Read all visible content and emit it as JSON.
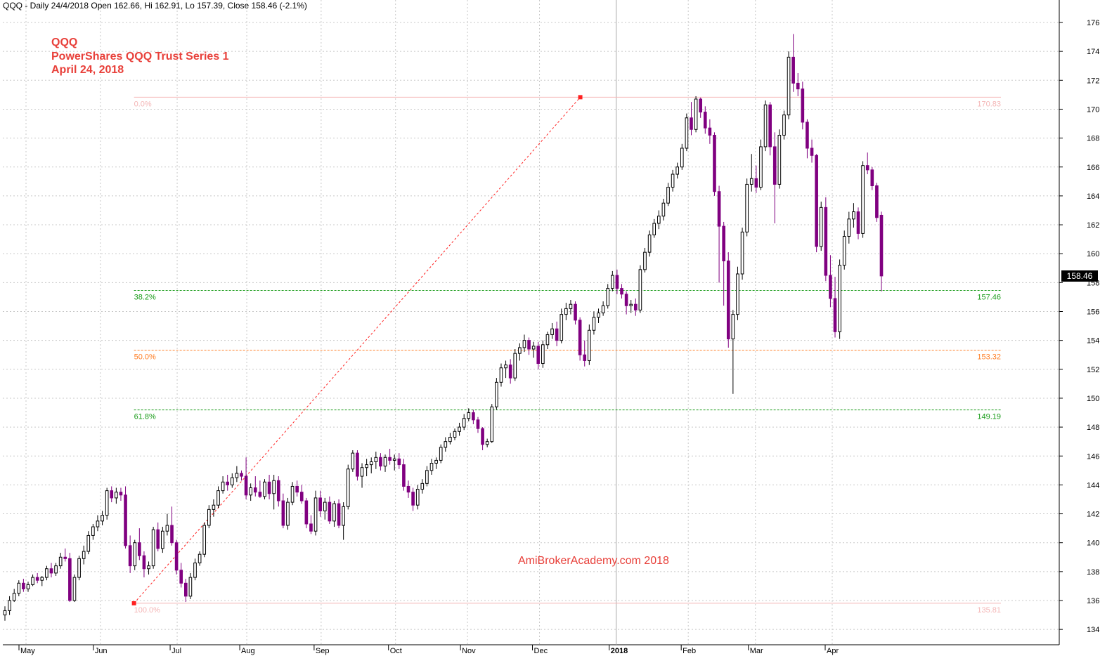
{
  "header": {
    "text": "QQQ - Daily 24/4/2018 Open 162.66, Hi 162.91, Lo 157.39, Close 158.46 (-2.1%)"
  },
  "annotations": {
    "ticker": "QQQ",
    "name": "PowerShares QQQ Trust Series 1",
    "date": "April 24, 2018",
    "watermark": "AmiBrokerAcademy.com  2018"
  },
  "last_price_label": "158.46",
  "colors": {
    "up": "#000000",
    "down": "#800080",
    "fib_0": "#f4b6b6",
    "fib_382": "#1a9c1a",
    "fib_50": "#ff7f27",
    "fib_618": "#1a9c1a",
    "fib_100": "#f4b6b6",
    "trend": "#ff2020",
    "grid": "#c8c8c8",
    "annotation": "#e8403a"
  },
  "chart_data": {
    "type": "candlestick",
    "title": "QQQ - Daily 24/4/2018",
    "x_axis": {
      "tick_labels": [
        "May",
        "Jun",
        "Jul",
        "Aug",
        "Sep",
        "Oct",
        "Nov",
        "Dec",
        "2018",
        "Feb",
        "Mar",
        "Apr"
      ],
      "tick_dates": [
        "2017-05-01",
        "2017-06-01",
        "2017-07-03",
        "2017-08-01",
        "2017-09-01",
        "2017-10-02",
        "2017-11-01",
        "2017-12-01",
        "2018-01-02",
        "2018-02-01",
        "2018-03-01",
        "2018-04-02"
      ]
    },
    "y_axis": {
      "ylim": [
        133,
        177
      ],
      "ticks": [
        134,
        136,
        138,
        140,
        142,
        144,
        146,
        148,
        150,
        152,
        154,
        156,
        158,
        160,
        162,
        164,
        166,
        168,
        170,
        172,
        174,
        176
      ],
      "position": "right"
    },
    "grid": true,
    "last_candle": {
      "date": "2018-04-24",
      "open": 162.66,
      "high": 162.91,
      "low": 157.39,
      "close": 158.46
    },
    "fibonacci": {
      "anchor_low": {
        "date": "2017-06-15",
        "value": 135.81
      },
      "anchor_high": {
        "date": "2017-12-18",
        "value": 170.83
      },
      "levels": [
        {
          "pct": "0.0%",
          "value": 170.83,
          "label": "170.83"
        },
        {
          "pct": "38.2%",
          "value": 157.46,
          "label": "157.46"
        },
        {
          "pct": "50.0%",
          "value": 153.32,
          "label": "153.32"
        },
        {
          "pct": "61.8%",
          "value": 149.19,
          "label": "149.19"
        },
        {
          "pct": "100.0%",
          "value": 135.81,
          "label": "135.81"
        }
      ]
    },
    "ohlc_approx": [
      [
        135.0,
        135.6,
        134.6,
        135.3
      ],
      [
        135.3,
        136.3,
        135.0,
        136.0
      ],
      [
        136.0,
        136.8,
        135.9,
        136.5
      ],
      [
        136.5,
        137.4,
        136.3,
        137.2
      ],
      [
        137.2,
        137.5,
        136.6,
        136.8
      ],
      [
        136.8,
        137.3,
        136.6,
        137.1
      ],
      [
        137.1,
        137.8,
        137.0,
        137.6
      ],
      [
        137.6,
        137.9,
        137.2,
        137.4
      ],
      [
        137.4,
        137.7,
        137.0,
        137.6
      ],
      [
        137.6,
        138.4,
        137.4,
        138.2
      ],
      [
        138.2,
        138.6,
        137.6,
        137.9
      ],
      [
        137.9,
        138.6,
        137.7,
        138.4
      ],
      [
        138.4,
        139.3,
        138.2,
        139.0
      ],
      [
        139.0,
        139.6,
        138.7,
        138.9
      ],
      [
        138.9,
        139.3,
        135.9,
        136.0
      ],
      [
        136.0,
        137.8,
        135.9,
        137.6
      ],
      [
        137.6,
        139.1,
        137.4,
        138.9
      ],
      [
        138.9,
        139.8,
        138.5,
        139.4
      ],
      [
        139.4,
        140.8,
        139.2,
        140.5
      ],
      [
        140.5,
        141.3,
        140.2,
        141.1
      ],
      [
        141.1,
        141.9,
        140.8,
        141.5
      ],
      [
        141.5,
        142.2,
        141.2,
        141.9
      ],
      [
        141.9,
        143.8,
        141.6,
        143.6
      ],
      [
        143.6,
        143.9,
        142.8,
        143.1
      ],
      [
        143.1,
        143.8,
        142.7,
        143.5
      ],
      [
        143.5,
        143.8,
        142.9,
        143.3
      ],
      [
        143.3,
        143.9,
        139.6,
        139.8
      ],
      [
        139.8,
        140.5,
        137.9,
        138.4
      ],
      [
        138.4,
        140.2,
        138.1,
        140.0
      ],
      [
        140.0,
        141.0,
        138.8,
        139.1
      ],
      [
        139.1,
        139.4,
        137.6,
        138.2
      ],
      [
        138.2,
        138.7,
        137.8,
        138.4
      ],
      [
        138.4,
        141.1,
        138.2,
        140.9
      ],
      [
        140.9,
        141.4,
        139.4,
        139.6
      ],
      [
        139.6,
        141.1,
        139.3,
        140.8
      ],
      [
        140.8,
        142.0,
        140.5,
        141.2
      ],
      [
        141.2,
        142.5,
        139.8,
        140.0
      ],
      [
        140.0,
        140.2,
        137.8,
        138.1
      ],
      [
        138.1,
        138.6,
        136.9,
        137.2
      ],
      [
        137.2,
        137.5,
        135.9,
        136.3
      ],
      [
        136.3,
        137.9,
        136.1,
        137.6
      ],
      [
        137.6,
        138.9,
        137.4,
        138.6
      ],
      [
        138.6,
        139.4,
        138.4,
        139.2
      ],
      [
        139.2,
        141.4,
        139.0,
        141.2
      ],
      [
        141.2,
        142.6,
        141.0,
        142.3
      ],
      [
        142.3,
        143.0,
        141.8,
        142.6
      ],
      [
        142.6,
        143.9,
        142.4,
        143.6
      ],
      [
        143.6,
        144.6,
        143.4,
        144.2
      ],
      [
        144.2,
        144.7,
        143.6,
        144.0
      ],
      [
        144.0,
        144.8,
        143.8,
        144.5
      ],
      [
        144.5,
        145.3,
        144.2,
        144.8
      ],
      [
        144.8,
        145.0,
        144.3,
        144.6
      ],
      [
        144.6,
        145.9,
        143.0,
        143.3
      ],
      [
        143.3,
        144.1,
        142.9,
        143.8
      ],
      [
        143.8,
        144.6,
        143.2,
        143.5
      ],
      [
        143.5,
        144.3,
        143.1,
        143.2
      ],
      [
        143.2,
        144.4,
        143.0,
        144.2
      ],
      [
        144.2,
        144.7,
        143.0,
        143.4
      ],
      [
        143.4,
        144.7,
        142.3,
        144.3
      ],
      [
        144.3,
        144.6,
        142.5,
        142.9
      ],
      [
        142.9,
        143.4,
        141.0,
        141.2
      ],
      [
        141.2,
        143.1,
        140.9,
        142.8
      ],
      [
        142.8,
        144.2,
        142.6,
        143.9
      ],
      [
        143.9,
        144.3,
        143.2,
        143.5
      ],
      [
        143.5,
        144.0,
        142.7,
        142.9
      ],
      [
        142.9,
        143.1,
        141.0,
        141.3
      ],
      [
        141.3,
        141.9,
        140.6,
        140.8
      ],
      [
        140.8,
        143.6,
        140.5,
        143.1
      ],
      [
        143.1,
        143.6,
        141.8,
        142.2
      ],
      [
        142.2,
        143.1,
        141.6,
        142.8
      ],
      [
        142.8,
        143.2,
        141.3,
        141.5
      ],
      [
        141.5,
        142.9,
        141.1,
        142.7
      ],
      [
        142.7,
        143.0,
        141.0,
        141.2
      ],
      [
        141.2,
        142.8,
        140.2,
        142.5
      ],
      [
        142.5,
        145.4,
        142.3,
        145.1
      ],
      [
        145.1,
        146.4,
        144.9,
        146.2
      ],
      [
        146.2,
        146.4,
        144.3,
        144.6
      ],
      [
        144.6,
        145.5,
        143.8,
        145.2
      ],
      [
        145.2,
        145.8,
        144.6,
        145.4
      ],
      [
        145.4,
        145.9,
        144.8,
        145.6
      ],
      [
        145.6,
        146.3,
        145.1,
        145.9
      ],
      [
        145.9,
        146.2,
        145.0,
        145.3
      ],
      [
        145.3,
        146.1,
        144.9,
        145.9
      ],
      [
        145.9,
        146.5,
        145.4,
        145.7
      ],
      [
        145.7,
        146.1,
        145.0,
        145.8
      ],
      [
        145.8,
        146.2,
        145.1,
        145.4
      ],
      [
        145.4,
        145.8,
        143.6,
        143.9
      ],
      [
        143.9,
        144.3,
        143.1,
        143.5
      ],
      [
        143.5,
        143.8,
        142.2,
        142.6
      ],
      [
        142.6,
        144.0,
        142.3,
        143.7
      ],
      [
        143.7,
        144.4,
        143.4,
        144.1
      ],
      [
        144.1,
        145.3,
        143.9,
        145.0
      ],
      [
        145.0,
        145.8,
        144.7,
        145.5
      ],
      [
        145.5,
        145.9,
        145.1,
        145.7
      ],
      [
        145.7,
        146.8,
        145.5,
        146.6
      ],
      [
        146.6,
        147.3,
        146.3,
        147.0
      ],
      [
        147.0,
        147.6,
        146.8,
        147.3
      ],
      [
        147.3,
        147.9,
        147.1,
        147.7
      ],
      [
        147.7,
        148.3,
        147.4,
        148.0
      ],
      [
        148.0,
        148.9,
        147.8,
        148.6
      ],
      [
        148.6,
        149.3,
        148.4,
        149.0
      ],
      [
        149.0,
        149.2,
        148.2,
        148.5
      ],
      [
        148.5,
        148.7,
        147.6,
        147.9
      ],
      [
        147.9,
        148.0,
        146.4,
        146.8
      ],
      [
        146.8,
        147.2,
        146.6,
        147.0
      ],
      [
        147.0,
        149.6,
        146.9,
        149.4
      ],
      [
        149.4,
        151.4,
        149.2,
        151.1
      ],
      [
        151.1,
        152.4,
        150.8,
        152.1
      ],
      [
        152.1,
        152.6,
        151.4,
        152.3
      ],
      [
        152.3,
        152.7,
        151.0,
        151.4
      ],
      [
        151.4,
        153.4,
        151.2,
        153.1
      ],
      [
        153.1,
        153.8,
        152.6,
        153.5
      ],
      [
        153.5,
        154.4,
        153.2,
        154.0
      ],
      [
        154.0,
        154.2,
        153.0,
        153.4
      ],
      [
        153.4,
        153.9,
        152.8,
        153.6
      ],
      [
        153.6,
        153.9,
        152.0,
        152.4
      ],
      [
        152.4,
        154.0,
        152.1,
        153.7
      ],
      [
        153.7,
        154.6,
        153.4,
        154.4
      ],
      [
        154.4,
        155.2,
        154.1,
        154.8
      ],
      [
        154.8,
        155.3,
        153.6,
        154.0
      ],
      [
        154.0,
        156.2,
        153.8,
        155.8
      ],
      [
        155.8,
        156.6,
        155.4,
        156.2
      ],
      [
        156.2,
        156.8,
        155.8,
        156.5
      ],
      [
        156.5,
        156.7,
        155.1,
        155.4
      ],
      [
        155.4,
        155.6,
        152.6,
        153.0
      ],
      [
        153.0,
        154.0,
        152.2,
        152.6
      ],
      [
        152.6,
        155.1,
        152.3,
        154.7
      ],
      [
        154.7,
        156.0,
        154.4,
        155.6
      ],
      [
        155.6,
        156.2,
        155.2,
        155.9
      ],
      [
        155.9,
        156.7,
        155.7,
        156.4
      ],
      [
        156.4,
        157.9,
        156.2,
        157.6
      ],
      [
        157.6,
        158.8,
        157.4,
        158.5
      ],
      [
        158.5,
        158.9,
        157.2,
        157.6
      ],
      [
        157.6,
        157.9,
        156.9,
        157.2
      ],
      [
        157.2,
        157.4,
        155.8,
        156.4
      ],
      [
        156.4,
        156.8,
        155.9,
        156.5
      ],
      [
        156.5,
        156.9,
        155.7,
        156.1
      ],
      [
        156.1,
        159.2,
        155.9,
        158.9
      ],
      [
        158.9,
        160.4,
        158.7,
        160.1
      ],
      [
        160.1,
        161.6,
        159.8,
        161.3
      ],
      [
        161.3,
        162.4,
        161.1,
        162.1
      ],
      [
        162.1,
        163.0,
        161.7,
        162.6
      ],
      [
        162.6,
        163.8,
        162.3,
        163.5
      ],
      [
        163.5,
        164.9,
        163.3,
        164.6
      ],
      [
        164.6,
        165.8,
        164.3,
        165.5
      ],
      [
        165.5,
        166.3,
        165.2,
        166.0
      ],
      [
        166.0,
        167.6,
        165.8,
        167.3
      ],
      [
        167.3,
        169.7,
        167.1,
        169.4
      ],
      [
        169.4,
        170.5,
        168.2,
        168.6
      ],
      [
        168.6,
        170.9,
        168.4,
        170.7
      ],
      [
        170.7,
        170.8,
        169.4,
        169.8
      ],
      [
        169.8,
        170.2,
        168.3,
        168.7
      ],
      [
        168.7,
        169.3,
        167.6,
        168.2
      ],
      [
        168.2,
        168.4,
        164.0,
        164.3
      ],
      [
        164.3,
        164.7,
        158.0,
        161.9
      ],
      [
        161.9,
        162.2,
        156.4,
        159.5
      ],
      [
        159.5,
        160.1,
        153.5,
        154.1
      ],
      [
        154.1,
        156.1,
        150.3,
        155.8
      ],
      [
        155.8,
        159.1,
        155.4,
        158.6
      ],
      [
        158.6,
        161.8,
        158.2,
        161.5
      ],
      [
        161.5,
        165.2,
        161.2,
        164.8
      ],
      [
        164.8,
        166.9,
        164.3,
        165.2
      ],
      [
        165.2,
        166.1,
        164.2,
        164.6
      ],
      [
        164.6,
        167.9,
        164.4,
        167.4
      ],
      [
        167.4,
        170.6,
        167.1,
        170.3
      ],
      [
        170.3,
        170.5,
        166.8,
        167.4
      ],
      [
        167.4,
        168.4,
        162.1,
        164.8
      ],
      [
        164.8,
        168.6,
        164.5,
        168.2
      ],
      [
        168.2,
        169.9,
        167.9,
        169.6
      ],
      [
        169.6,
        174.0,
        169.3,
        173.6
      ],
      [
        173.6,
        175.2,
        171.2,
        171.8
      ],
      [
        171.8,
        172.5,
        170.9,
        171.4
      ],
      [
        171.4,
        171.9,
        168.6,
        169.1
      ],
      [
        169.1,
        169.3,
        166.6,
        167.3
      ],
      [
        167.3,
        167.9,
        166.3,
        166.8
      ],
      [
        166.8,
        166.9,
        160.1,
        160.5
      ],
      [
        160.5,
        163.6,
        160.2,
        163.2
      ],
      [
        163.2,
        163.9,
        158.1,
        158.5
      ],
      [
        158.5,
        159.9,
        156.3,
        156.9
      ],
      [
        156.9,
        158.4,
        154.2,
        154.6
      ],
      [
        154.6,
        159.6,
        154.1,
        159.2
      ],
      [
        159.2,
        161.6,
        158.9,
        161.2
      ],
      [
        161.2,
        162.9,
        160.7,
        162.4
      ],
      [
        162.4,
        163.5,
        161.8,
        162.9
      ],
      [
        162.9,
        163.2,
        161.0,
        161.4
      ],
      [
        161.4,
        166.4,
        161.1,
        166.1
      ],
      [
        166.1,
        167.0,
        165.5,
        165.8
      ],
      [
        165.8,
        166.0,
        164.4,
        164.7
      ],
      [
        164.7,
        164.9,
        162.2,
        162.5
      ],
      [
        162.66,
        162.91,
        157.39,
        158.46
      ]
    ]
  }
}
